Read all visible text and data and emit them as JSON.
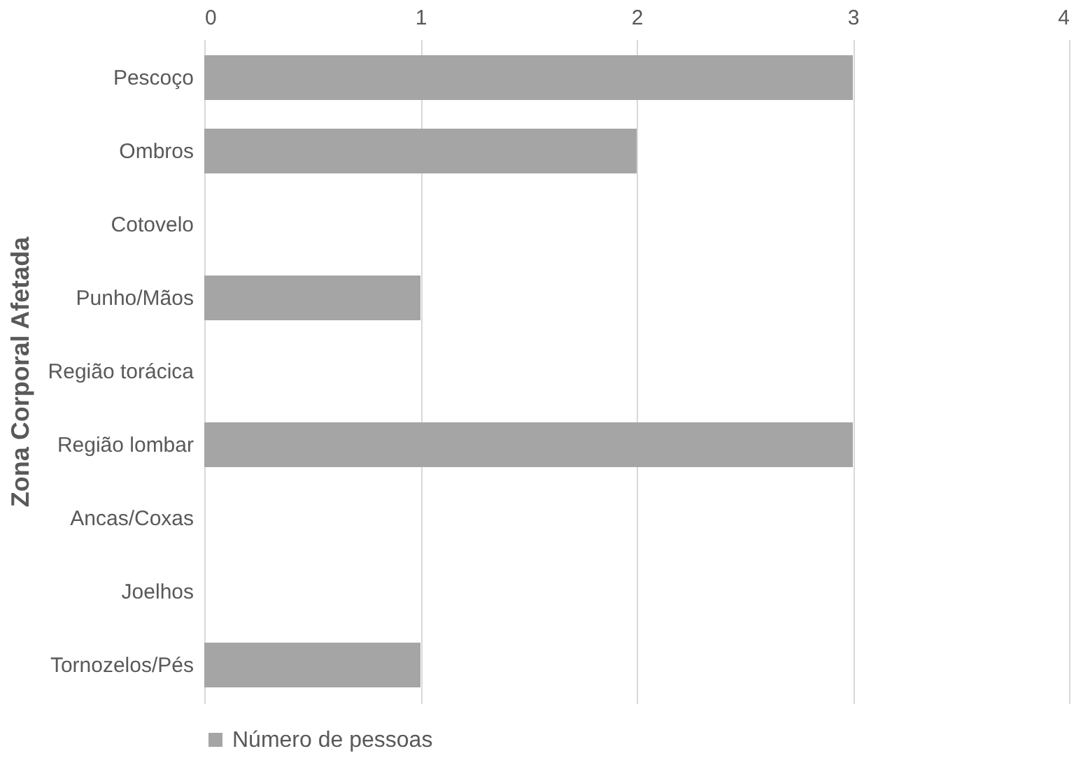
{
  "chart_data": {
    "type": "bar",
    "orientation": "horizontal",
    "ylabel": "Zona Corporal Afetada",
    "categories": [
      "Pescoço",
      "Ombros",
      "Cotovelo",
      "Punho/Mãos",
      "Região torácica",
      "Região lombar",
      "Ancas/Coxas",
      "Joelhos",
      "Tornozelos/Pés"
    ],
    "series": [
      {
        "name": "Número de pessoas",
        "color": "#a5a5a5",
        "values": [
          3,
          2,
          0,
          1,
          0,
          3,
          0,
          0,
          1
        ]
      }
    ],
    "xlim": [
      0,
      4
    ],
    "xticks": [
      0,
      1,
      2,
      3,
      4
    ],
    "grid": "x",
    "legend": "bottom"
  }
}
